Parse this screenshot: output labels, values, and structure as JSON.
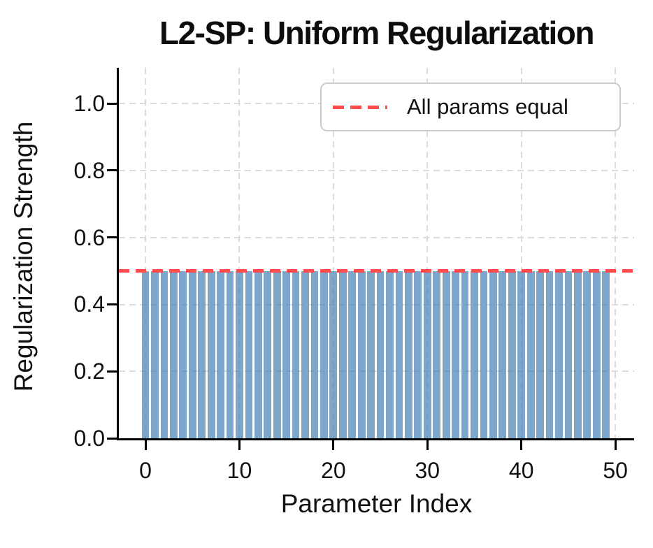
{
  "chart_data": {
    "type": "bar",
    "title": "L2-SP: Uniform Regularization",
    "xlabel": "Parameter Index",
    "ylabel": "Regularization Strength",
    "x": [
      0,
      1,
      2,
      3,
      4,
      5,
      6,
      7,
      8,
      9,
      10,
      11,
      12,
      13,
      14,
      15,
      16,
      17,
      18,
      19,
      20,
      21,
      22,
      23,
      24,
      25,
      26,
      27,
      28,
      29,
      30,
      31,
      32,
      33,
      34,
      35,
      36,
      37,
      38,
      39,
      40,
      41,
      42,
      43,
      44,
      45,
      46,
      47,
      48,
      49
    ],
    "values": [
      0.5,
      0.5,
      0.5,
      0.5,
      0.5,
      0.5,
      0.5,
      0.5,
      0.5,
      0.5,
      0.5,
      0.5,
      0.5,
      0.5,
      0.5,
      0.5,
      0.5,
      0.5,
      0.5,
      0.5,
      0.5,
      0.5,
      0.5,
      0.5,
      0.5,
      0.5,
      0.5,
      0.5,
      0.5,
      0.5,
      0.5,
      0.5,
      0.5,
      0.5,
      0.5,
      0.5,
      0.5,
      0.5,
      0.5,
      0.5,
      0.5,
      0.5,
      0.5,
      0.5,
      0.5,
      0.5,
      0.5,
      0.5,
      0.5,
      0.5
    ],
    "bar_width": 0.8,
    "reference_line": {
      "value": 0.5,
      "label": "All params equal",
      "style": "dashed"
    },
    "xlim": [
      -2.83,
      52.0
    ],
    "ylim": [
      0,
      1.107
    ],
    "xticks": [
      0,
      10,
      20,
      30,
      40,
      50
    ],
    "yticks": [
      0.0,
      0.2,
      0.4,
      0.6,
      0.8,
      1.0
    ],
    "grid": true,
    "legend_position": "upper right",
    "colors": {
      "bar": "rgba(70,130,180,0.7)",
      "bar_on_white": "#7da7cb",
      "reference_line": "#ff4d4d",
      "grid": "#dcdcdc",
      "axis": "#000000",
      "text": "#111111"
    }
  }
}
